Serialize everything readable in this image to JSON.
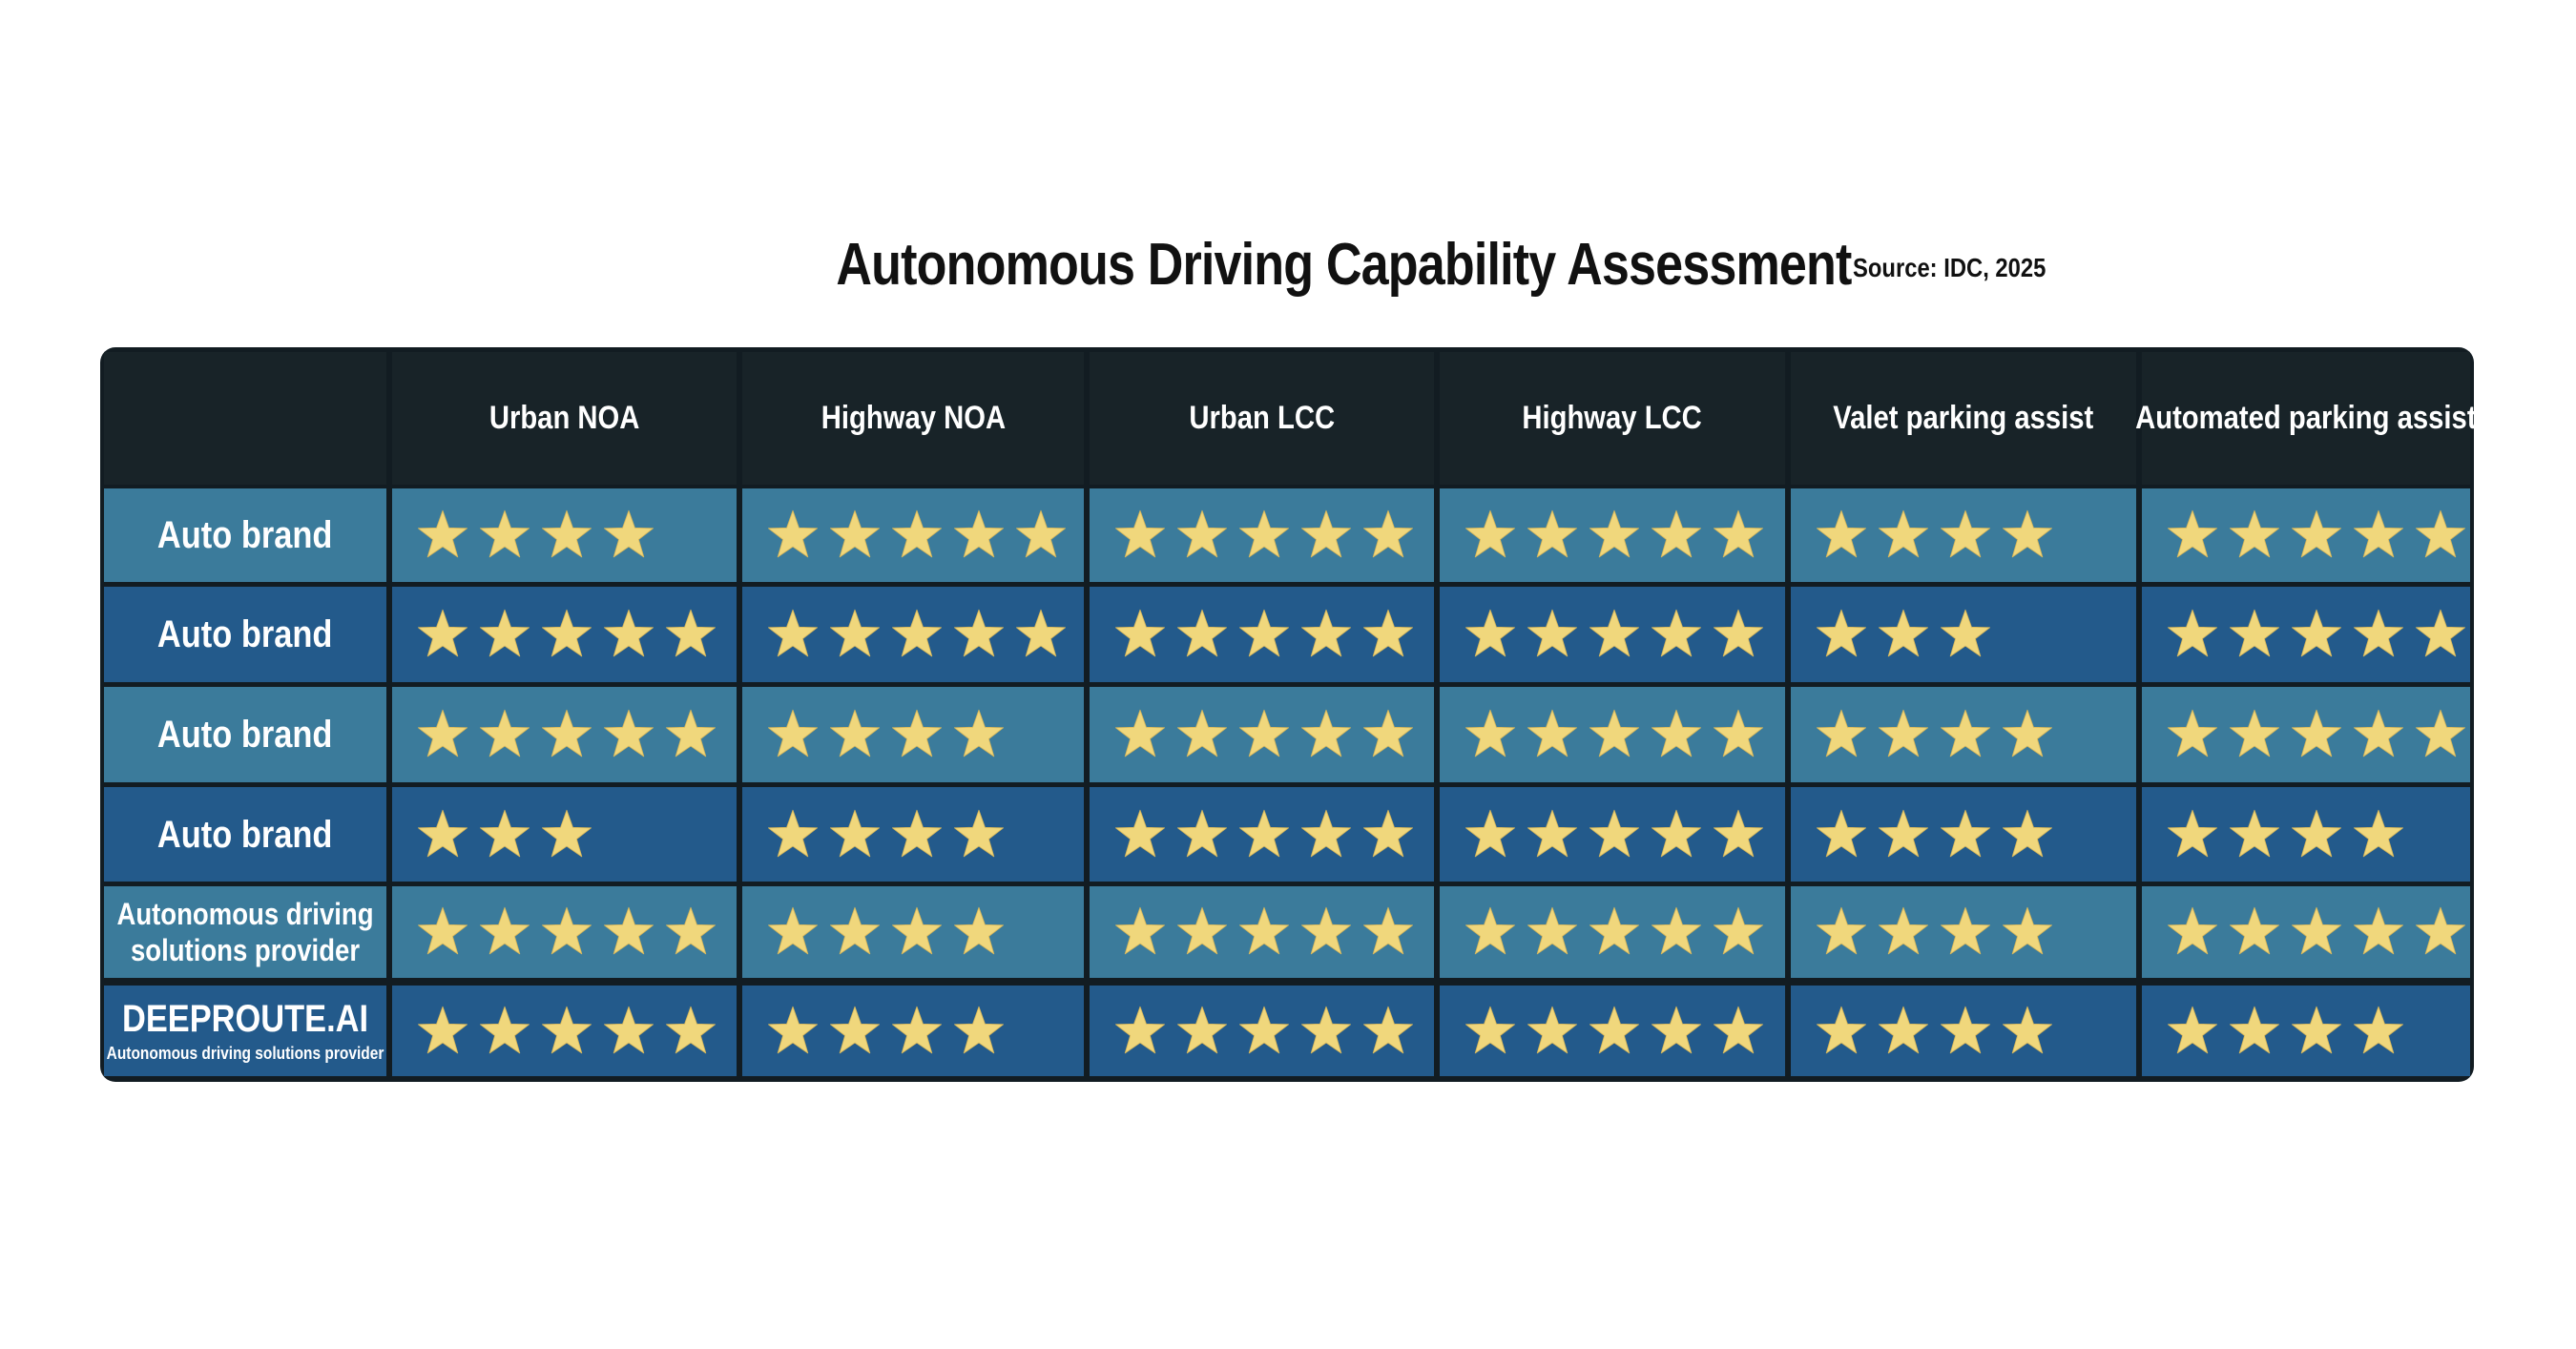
{
  "header": {
    "title": "Autonomous Driving Capability Assessment",
    "source": "Source: IDC, 2025"
  },
  "colors": {
    "header_bg": "#182328",
    "row_light": "#3b7b9b",
    "row_dark": "#235a8b",
    "star_gold": "#f0d77c",
    "frame": "#121c22"
  },
  "chart_data": {
    "type": "table",
    "title": "Autonomous Driving Capability Assessment",
    "source": "Source: IDC, 2025",
    "columns": [
      "Urban NOA",
      "Highway NOA",
      "Urban LCC",
      "Highway LCC",
      "Valet parking assist",
      "Automated parking assist"
    ],
    "rows": [
      {
        "label": "Auto brand",
        "sublabel": "",
        "ratings": [
          4,
          5,
          5,
          5,
          4,
          5
        ]
      },
      {
        "label": "Auto brand",
        "sublabel": "",
        "ratings": [
          5,
          5,
          5,
          5,
          3,
          5
        ]
      },
      {
        "label": "Auto brand",
        "sublabel": "",
        "ratings": [
          5,
          4,
          5,
          5,
          4,
          5
        ]
      },
      {
        "label": "Auto brand",
        "sublabel": "",
        "ratings": [
          3,
          4,
          5,
          5,
          4,
          4
        ]
      },
      {
        "label": "Autonomous driving solutions provider",
        "sublabel": "",
        "ratings": [
          5,
          4,
          5,
          5,
          4,
          5
        ]
      },
      {
        "label": "DEEPROUTE.AI",
        "sublabel": "Autonomous driving solutions provider",
        "ratings": [
          5,
          4,
          5,
          5,
          4,
          4
        ]
      }
    ],
    "max_rating": 5
  }
}
